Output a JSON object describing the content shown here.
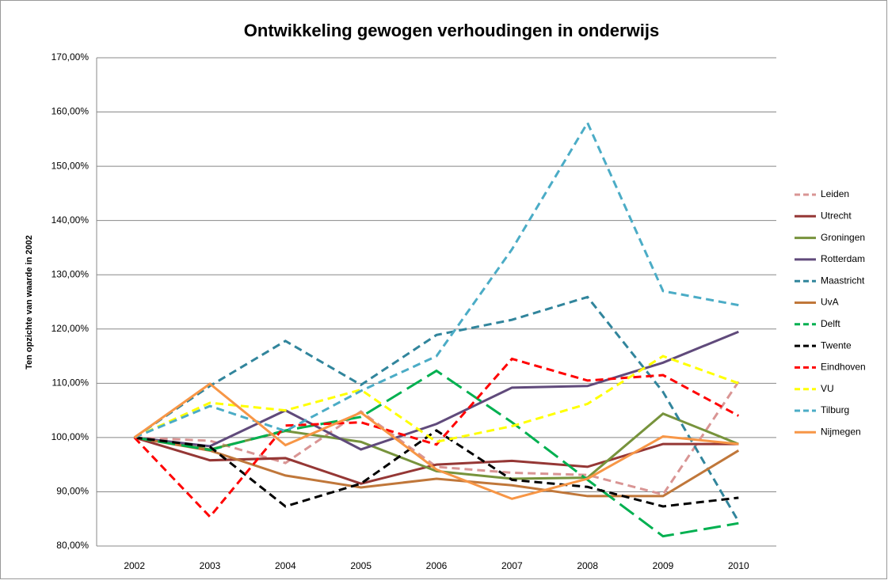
{
  "chart_data": {
    "type": "line",
    "title": "Ontwikkeling gewogen verhoudingen in onderwijs",
    "y_label": "Ten opzichte van waarde in 2002",
    "categories": [
      "2002",
      "2003",
      "2004",
      "2005",
      "2006",
      "2007",
      "2008",
      "2009",
      "2010"
    ],
    "ylim": [
      80,
      170
    ],
    "yticks": [
      {
        "value": 80,
        "label": "80,00%"
      },
      {
        "value": 90,
        "label": "90,00%"
      },
      {
        "value": 100,
        "label": "100,00%"
      },
      {
        "value": 110,
        "label": "110,00%"
      },
      {
        "value": 120,
        "label": "120,00%"
      },
      {
        "value": 130,
        "label": "130,00%"
      },
      {
        "value": 140,
        "label": "140,00%"
      },
      {
        "value": 150,
        "label": "150,00%"
      },
      {
        "value": 160,
        "label": "160,00%"
      },
      {
        "value": 170,
        "label": "170,00%"
      }
    ],
    "grid": true,
    "legend": "right",
    "series": [
      {
        "name": "Leiden",
        "color": "#d99594",
        "dash": "dashed",
        "values": [
          100,
          99.4,
          95.3,
          104.8,
          94.6,
          93.5,
          93.1,
          89.5,
          110.3
        ]
      },
      {
        "name": "Utrecht",
        "color": "#953735",
        "dash": "solid",
        "values": [
          100,
          95.8,
          96.2,
          91.5,
          95,
          95.7,
          94.6,
          98.8,
          98.8
        ]
      },
      {
        "name": "Groningen",
        "color": "#77933c",
        "dash": "solid",
        "values": [
          100,
          97.8,
          101.2,
          99.2,
          93.8,
          92.4,
          92.6,
          104.4,
          98.8
        ]
      },
      {
        "name": "Rotterdam",
        "color": "#604a7b",
        "dash": "solid",
        "values": [
          100,
          98.4,
          105,
          97.8,
          102.5,
          109.2,
          109.5,
          113.8,
          119.5
        ]
      },
      {
        "name": "Maastricht",
        "color": "#31859c",
        "dash": "dashed",
        "values": [
          100,
          109.5,
          117.8,
          109.7,
          118.9,
          121.7,
          125.9,
          108.4,
          84.5
        ]
      },
      {
        "name": "UvA",
        "color": "#c0773a",
        "dash": "solid",
        "values": [
          100,
          97.6,
          93,
          90.8,
          92.4,
          91.2,
          89.2,
          89.2,
          97.6
        ]
      },
      {
        "name": "Delft",
        "color": "#00b050",
        "dash": "longdash",
        "values": [
          100,
          97.7,
          101.3,
          103.8,
          112.3,
          102.8,
          92.2,
          81.8,
          84.2
        ]
      },
      {
        "name": "Twente",
        "color": "#000000",
        "dash": "dashed",
        "values": [
          100,
          98.3,
          87.3,
          91.5,
          101.3,
          92.2,
          90.9,
          87.3,
          88.9
        ]
      },
      {
        "name": "Eindhoven",
        "color": "#ff0000",
        "dash": "dashed",
        "values": [
          100,
          85.4,
          102.2,
          102.8,
          98.7,
          114.5,
          110.5,
          111.5,
          104
        ]
      },
      {
        "name": "VU",
        "color": "#ffff00",
        "dash": "dashed",
        "values": [
          100,
          106.4,
          105,
          108.8,
          99.2,
          102.1,
          106.2,
          115,
          110
        ]
      },
      {
        "name": "Tilburg",
        "color": "#4bacc6",
        "dash": "dashed",
        "values": [
          100,
          105.8,
          101.2,
          108.6,
          115,
          134.7,
          158,
          127,
          124.4
        ]
      },
      {
        "name": "Nijmegen",
        "color": "#f79646",
        "dash": "solid",
        "values": [
          100,
          109.9,
          98.6,
          104.6,
          94.1,
          88.7,
          92.4,
          100.2,
          98.8
        ]
      }
    ]
  }
}
